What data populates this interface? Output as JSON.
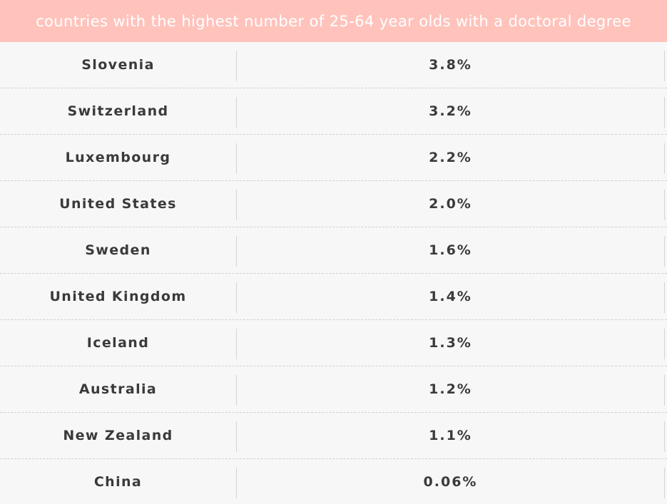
{
  "chart_data": {
    "type": "table",
    "title": "countries with the highest number of 25-64 year olds with a doctoral degree",
    "rows": [
      {
        "country": "Slovenia",
        "value": "3.8%"
      },
      {
        "country": "Switzerland",
        "value": "3.2%"
      },
      {
        "country": "Luxembourg",
        "value": "2.2%"
      },
      {
        "country": "United States",
        "value": "2.0%"
      },
      {
        "country": "Sweden",
        "value": "1.6%"
      },
      {
        "country": "United Kingdom",
        "value": "1.4%"
      },
      {
        "country": "Iceland",
        "value": "1.3%"
      },
      {
        "country": "Australia",
        "value": "1.2%"
      },
      {
        "country": "New Zealand",
        "value": "1.1%"
      },
      {
        "country": "China",
        "value": "0.06%"
      }
    ]
  },
  "colors": {
    "header_bg": "#ffc3bc",
    "header_text": "#ffffff",
    "body_bg": "#f7f7f7",
    "cell_text": "#3a3a3a"
  }
}
